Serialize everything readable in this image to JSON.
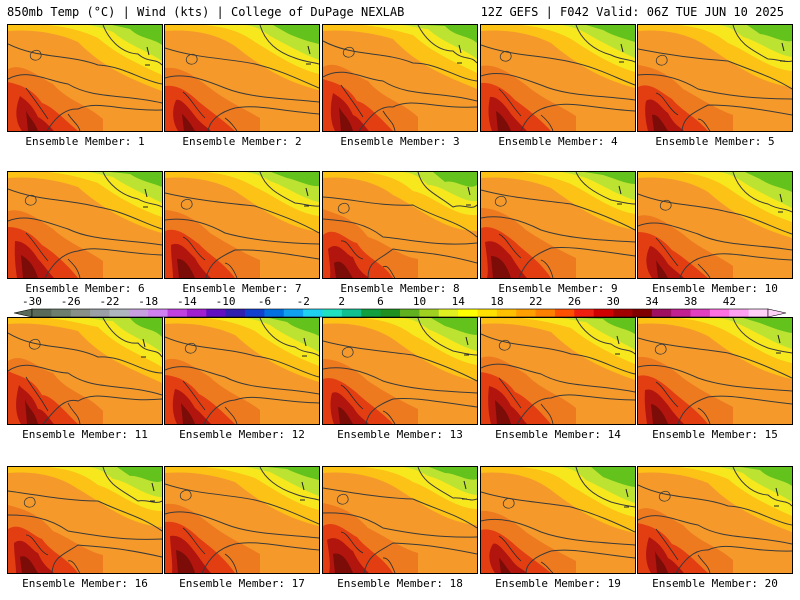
{
  "header": {
    "left": "850mb Temp (°C) | Wind (kts) | College of DuPage NEXLAB",
    "right": "12Z GEFS | F042 Valid: 06Z TUE JUN 10 2025"
  },
  "member_label_prefix": "Ensemble Member: ",
  "members": [
    1,
    2,
    3,
    4,
    5,
    6,
    7,
    8,
    9,
    10,
    11,
    12,
    13,
    14,
    15,
    16,
    17,
    18,
    19,
    20
  ],
  "colorbar": {
    "labels": [
      "-30",
      "-26",
      "-22",
      "-18",
      "-14",
      "-10",
      "-6",
      "-2",
      "2",
      "6",
      "10",
      "14",
      "18",
      "22",
      "26",
      "30",
      "34",
      "38",
      "42"
    ],
    "colors": [
      "#5a6a5a",
      "#6e7e6e",
      "#889088",
      "#9aa0a6",
      "#b0b6be",
      "#c8a0e0",
      "#d080f0",
      "#c040e0",
      "#a020d0",
      "#6010c0",
      "#3020b0",
      "#1040d0",
      "#0070e0",
      "#10a0f0",
      "#20d0f0",
      "#20e0c0",
      "#10c090",
      "#10a040",
      "#209020",
      "#60b020",
      "#a0d020",
      "#e0f020",
      "#ffff00",
      "#ffe000",
      "#ffc000",
      "#ffa000",
      "#ff8000",
      "#ff5000",
      "#f02010",
      "#d00000",
      "#a00000",
      "#800000",
      "#a01060",
      "#c02090",
      "#e040c0",
      "#ff70e0",
      "#ffa0f0",
      "#ffd0f8"
    ]
  },
  "colors": {
    "green": "#63c21c",
    "lime": "#bde332",
    "yellow": "#f7e81e",
    "gold": "#fcc216",
    "orange": "#f59a2a",
    "darkorange": "#ee7a20",
    "red": "#e33e12",
    "darkred": "#b1150e",
    "maroon": "#7c0c08"
  }
}
